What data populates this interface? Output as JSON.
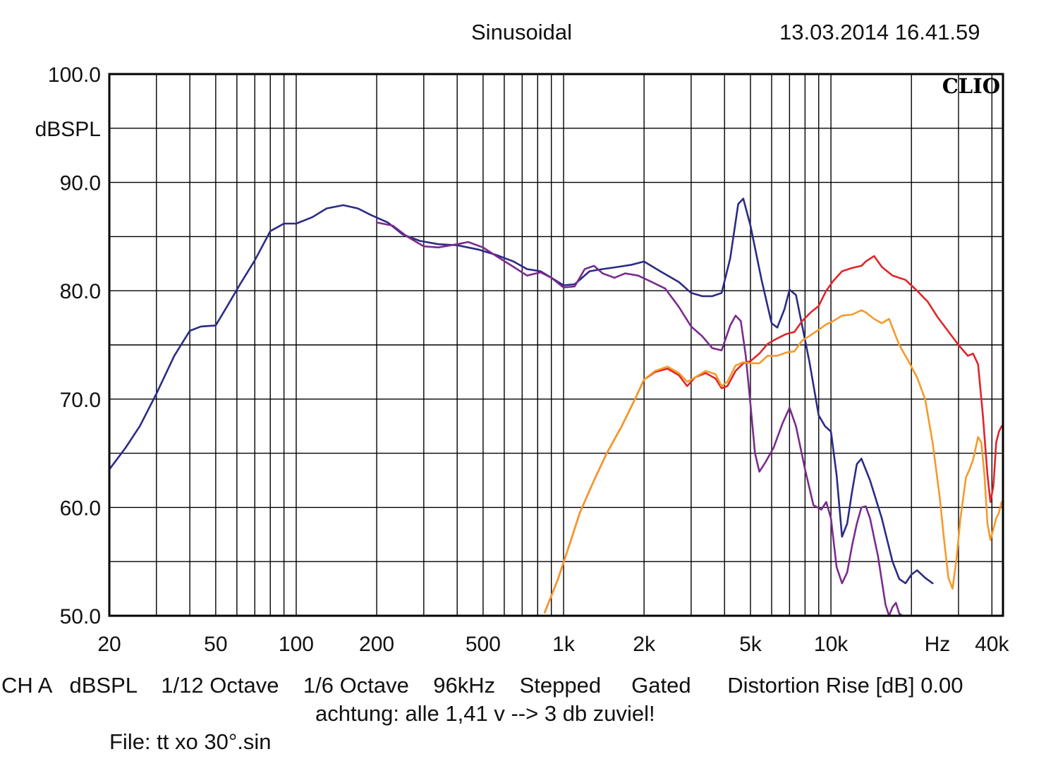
{
  "header": {
    "mode": "Sinusoidal",
    "timestamp": "13.03.2014 16.41.59"
  },
  "footer": {
    "settings_line": "CH A   dBSPL    1/12 Octave    1/6 Octave    96kHz    Stepped     Gated      Distortion Rise [dB] 0.00",
    "note": "achtung: alle 1,41 v --> 3 db zuviel!",
    "file": "File: tt xo 30°.sin"
  },
  "chart_data": {
    "type": "line",
    "brand": "CLIO",
    "ylabel": "dBSPL",
    "xscale": "log",
    "xlim": [
      20,
      44000
    ],
    "ylim": [
      50,
      100
    ],
    "grid": true,
    "y_ticks": [
      {
        "value": 100,
        "label": "100.0"
      },
      {
        "value": 90,
        "label": "90.0"
      },
      {
        "value": 80,
        "label": "80.0"
      },
      {
        "value": 70,
        "label": "70.0"
      },
      {
        "value": 60,
        "label": "60.0"
      },
      {
        "value": 50,
        "label": "50.0"
      }
    ],
    "x_ticks": [
      {
        "value": 20,
        "label": "20"
      },
      {
        "value": 50,
        "label": "50"
      },
      {
        "value": 100,
        "label": "100"
      },
      {
        "value": 200,
        "label": "200"
      },
      {
        "value": 500,
        "label": "500"
      },
      {
        "value": 1000,
        "label": "1k"
      },
      {
        "value": 2000,
        "label": "2k"
      },
      {
        "value": 5000,
        "label": "5k"
      },
      {
        "value": 10000,
        "label": "10k"
      },
      {
        "value": 25000,
        "label": "Hz"
      },
      {
        "value": 40000,
        "label": "40k"
      }
    ],
    "series": [
      {
        "color": "#2b2b86",
        "points": [
          [
            20,
            63.5
          ],
          [
            23,
            65.5
          ],
          [
            26,
            67.5
          ],
          [
            30,
            70.5
          ],
          [
            35,
            74
          ],
          [
            40,
            76.3
          ],
          [
            44,
            76.7
          ],
          [
            50,
            76.8
          ],
          [
            55,
            78.5
          ],
          [
            62,
            80.7
          ],
          [
            70,
            82.8
          ],
          [
            80,
            85.5
          ],
          [
            90,
            86.2
          ],
          [
            100,
            86.2
          ],
          [
            115,
            86.8
          ],
          [
            130,
            87.6
          ],
          [
            150,
            87.9
          ],
          [
            170,
            87.6
          ],
          [
            190,
            87
          ],
          [
            220,
            86.3
          ],
          [
            250,
            85.2
          ],
          [
            290,
            84.6
          ],
          [
            340,
            84.3
          ],
          [
            400,
            84.2
          ],
          [
            480,
            83.8
          ],
          [
            560,
            83.3
          ],
          [
            650,
            82.7
          ],
          [
            730,
            82
          ],
          [
            820,
            81.8
          ],
          [
            900,
            81.2
          ],
          [
            1000,
            80.5
          ],
          [
            1100,
            80.6
          ],
          [
            1250,
            81.8
          ],
          [
            1400,
            82
          ],
          [
            1600,
            82.2
          ],
          [
            1800,
            82.4
          ],
          [
            2000,
            82.7
          ],
          [
            2300,
            81.8
          ],
          [
            2700,
            80.8
          ],
          [
            3000,
            79.8
          ],
          [
            3300,
            79.5
          ],
          [
            3600,
            79.5
          ],
          [
            3900,
            79.8
          ],
          [
            4200,
            83
          ],
          [
            4500,
            88
          ],
          [
            4700,
            88.5
          ],
          [
            5000,
            86
          ],
          [
            5500,
            81
          ],
          [
            6000,
            77
          ],
          [
            6300,
            76.6
          ],
          [
            6700,
            78.3
          ],
          [
            7000,
            80.1
          ],
          [
            7400,
            79.6
          ],
          [
            7800,
            76.8
          ],
          [
            8300,
            73.5
          ],
          [
            9000,
            68.5
          ],
          [
            9500,
            67.5
          ],
          [
            10000,
            67
          ],
          [
            10500,
            63
          ],
          [
            11000,
            57.3
          ],
          [
            11500,
            58.5
          ],
          [
            12000,
            61.5
          ],
          [
            12500,
            64
          ],
          [
            13000,
            64.5
          ],
          [
            14000,
            62.5
          ],
          [
            15500,
            59
          ],
          [
            17000,
            55
          ],
          [
            18000,
            53.4
          ],
          [
            19000,
            53
          ],
          [
            20000,
            53.8
          ],
          [
            21000,
            54.2
          ],
          [
            22500,
            53.5
          ],
          [
            24000,
            53
          ]
        ]
      },
      {
        "color": "#7b2b8e",
        "points": [
          [
            200,
            86.3
          ],
          [
            230,
            86
          ],
          [
            260,
            85
          ],
          [
            300,
            84.1
          ],
          [
            340,
            84
          ],
          [
            400,
            84.3
          ],
          [
            440,
            84.5
          ],
          [
            500,
            84
          ],
          [
            560,
            83.2
          ],
          [
            650,
            82.2
          ],
          [
            730,
            81.4
          ],
          [
            820,
            81.7
          ],
          [
            900,
            81.2
          ],
          [
            1000,
            80.3
          ],
          [
            1100,
            80.4
          ],
          [
            1200,
            82
          ],
          [
            1300,
            82.3
          ],
          [
            1400,
            81.6
          ],
          [
            1550,
            81.2
          ],
          [
            1700,
            81.6
          ],
          [
            1900,
            81.4
          ],
          [
            2100,
            80.9
          ],
          [
            2400,
            80.2
          ],
          [
            2700,
            78.5
          ],
          [
            3000,
            76.7
          ],
          [
            3300,
            75.8
          ],
          [
            3600,
            74.7
          ],
          [
            3900,
            74.5
          ],
          [
            4200,
            76.8
          ],
          [
            4400,
            77.7
          ],
          [
            4600,
            77.2
          ],
          [
            4800,
            74
          ],
          [
            5000,
            69.5
          ],
          [
            5200,
            65
          ],
          [
            5400,
            63.3
          ],
          [
            5700,
            64.2
          ],
          [
            6100,
            65.5
          ],
          [
            6600,
            67.8
          ],
          [
            7000,
            69.2
          ],
          [
            7400,
            67.5
          ],
          [
            8000,
            63.5
          ],
          [
            8600,
            60.2
          ],
          [
            9200,
            59.8
          ],
          [
            9600,
            60.5
          ],
          [
            10000,
            59
          ],
          [
            10500,
            54.5
          ],
          [
            11000,
            53
          ],
          [
            11500,
            54
          ],
          [
            12000,
            56.5
          ],
          [
            12500,
            58.5
          ],
          [
            13000,
            60
          ],
          [
            13500,
            60.1
          ],
          [
            14000,
            59
          ],
          [
            15000,
            55.5
          ],
          [
            16000,
            51
          ],
          [
            16500,
            50
          ],
          [
            17000,
            50.8
          ],
          [
            17500,
            51.2
          ],
          [
            18000,
            50.2
          ],
          [
            18500,
            50
          ]
        ]
      },
      {
        "color": "#e0252a",
        "points": [
          [
            850,
            50.3
          ],
          [
            950,
            53.3
          ],
          [
            1050,
            56.5
          ],
          [
            1150,
            59.5
          ],
          [
            1300,
            62.5
          ],
          [
            1450,
            65
          ],
          [
            1650,
            67.5
          ],
          [
            1850,
            70
          ],
          [
            2000,
            71.8
          ],
          [
            2200,
            72.5
          ],
          [
            2450,
            72.8
          ],
          [
            2700,
            72.2
          ],
          [
            2900,
            71.2
          ],
          [
            3100,
            72
          ],
          [
            3400,
            72.4
          ],
          [
            3700,
            71.9
          ],
          [
            3900,
            71
          ],
          [
            4100,
            71.2
          ],
          [
            4400,
            72.6
          ],
          [
            4700,
            73.3
          ],
          [
            5000,
            73.5
          ],
          [
            5400,
            74.2
          ],
          [
            5800,
            75.1
          ],
          [
            6300,
            75.6
          ],
          [
            6800,
            76
          ],
          [
            7300,
            76.2
          ],
          [
            7800,
            77.2
          ],
          [
            8400,
            78
          ],
          [
            9000,
            78.6
          ],
          [
            9600,
            80
          ],
          [
            10200,
            80.9
          ],
          [
            11000,
            81.8
          ],
          [
            12000,
            82.1
          ],
          [
            13000,
            82.3
          ],
          [
            13500,
            82.7
          ],
          [
            14500,
            83.2
          ],
          [
            15500,
            82.2
          ],
          [
            17000,
            81.4
          ],
          [
            19000,
            81
          ],
          [
            21000,
            80
          ],
          [
            23000,
            79
          ],
          [
            25000,
            77.6
          ],
          [
            27000,
            76.5
          ],
          [
            30000,
            75
          ],
          [
            32500,
            74
          ],
          [
            34000,
            74.2
          ],
          [
            35500,
            73.2
          ],
          [
            37000,
            68.5
          ],
          [
            38500,
            63
          ],
          [
            39500,
            60.5
          ],
          [
            40500,
            62
          ],
          [
            41500,
            66
          ],
          [
            42500,
            67
          ],
          [
            43500,
            67.5
          ]
        ]
      },
      {
        "color": "#f59a2a",
        "points": [
          [
            850,
            50.3
          ],
          [
            950,
            53.3
          ],
          [
            1050,
            56.5
          ],
          [
            1150,
            59.5
          ],
          [
            1300,
            62.5
          ],
          [
            1450,
            65
          ],
          [
            1650,
            67.5
          ],
          [
            1850,
            70
          ],
          [
            2000,
            71.8
          ],
          [
            2200,
            72.6
          ],
          [
            2450,
            73
          ],
          [
            2700,
            72.4
          ],
          [
            2900,
            71.6
          ],
          [
            3100,
            72
          ],
          [
            3400,
            72.6
          ],
          [
            3700,
            72.3
          ],
          [
            3900,
            71.2
          ],
          [
            4100,
            71.6
          ],
          [
            4400,
            73.1
          ],
          [
            4700,
            73.4
          ],
          [
            5000,
            73.3
          ],
          [
            5400,
            73.3
          ],
          [
            5800,
            74
          ],
          [
            6300,
            74
          ],
          [
            6800,
            74.3
          ],
          [
            7300,
            74.4
          ],
          [
            7800,
            75.4
          ],
          [
            8400,
            75.9
          ],
          [
            9000,
            76.4
          ],
          [
            9600,
            76.9
          ],
          [
            10200,
            77.2
          ],
          [
            11000,
            77.7
          ],
          [
            12000,
            77.8
          ],
          [
            13000,
            78.2
          ],
          [
            13500,
            78
          ],
          [
            14500,
            77.4
          ],
          [
            15500,
            77
          ],
          [
            16500,
            77.4
          ],
          [
            18000,
            75
          ],
          [
            19500,
            73.5
          ],
          [
            21000,
            72
          ],
          [
            22500,
            70
          ],
          [
            24000,
            66
          ],
          [
            25500,
            61
          ],
          [
            26500,
            57
          ],
          [
            27500,
            53.5
          ],
          [
            28500,
            52.5
          ],
          [
            29500,
            55.3
          ],
          [
            30500,
            59
          ],
          [
            32000,
            62.8
          ],
          [
            33000,
            63.5
          ],
          [
            34000,
            64.4
          ],
          [
            35500,
            66.5
          ],
          [
            36500,
            66
          ],
          [
            37500,
            63
          ],
          [
            38500,
            58.5
          ],
          [
            39500,
            57
          ],
          [
            40500,
            58
          ],
          [
            41500,
            59
          ],
          [
            42500,
            59.5
          ],
          [
            43500,
            60.5
          ]
        ]
      }
    ]
  }
}
